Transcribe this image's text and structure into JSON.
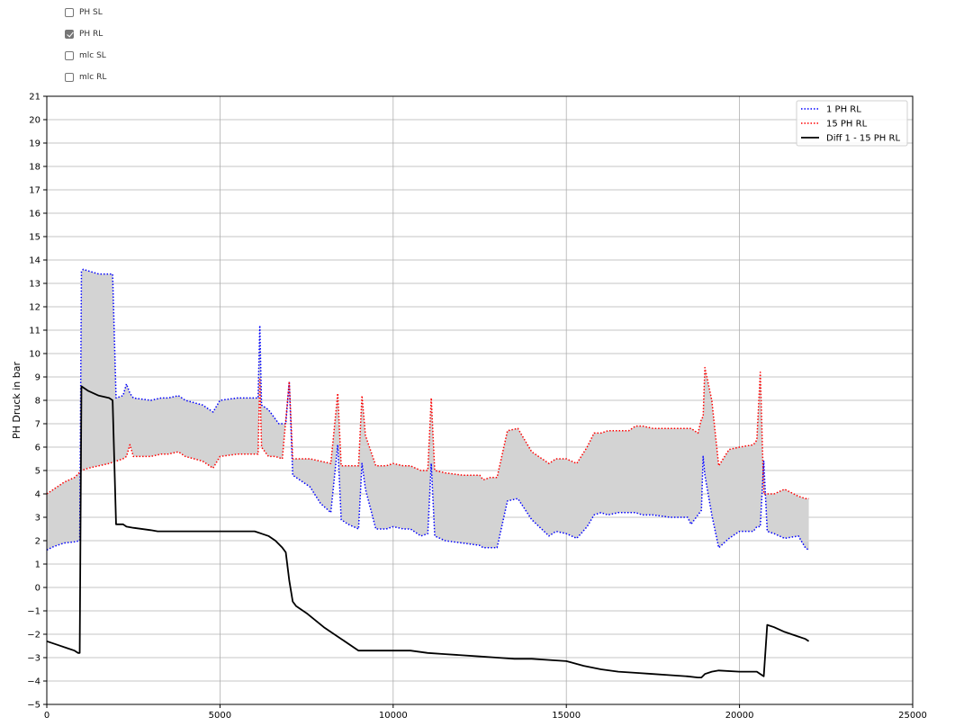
{
  "checkboxes": [
    {
      "label": "PH SL",
      "checked": false
    },
    {
      "label": "PH RL",
      "checked": true
    },
    {
      "label": "mlc SL",
      "checked": false
    },
    {
      "label": "mlc RL",
      "checked": false
    }
  ],
  "chart_data": {
    "type": "line",
    "title": "",
    "xlabel": "",
    "ylabel": "PH Druck in bar",
    "xlim": [
      0,
      25000
    ],
    "ylim": [
      -5,
      21
    ],
    "x_ticks": [
      "0",
      "5000",
      "10000",
      "15000",
      "20000",
      "25000"
    ],
    "y_ticks": [
      "−5",
      "−4",
      "−3",
      "−2",
      "−1",
      "0",
      "1",
      "2",
      "3",
      "4",
      "5",
      "6",
      "7",
      "8",
      "9",
      "10",
      "11",
      "12",
      "13",
      "14",
      "15",
      "16",
      "17",
      "18",
      "19",
      "20",
      "21"
    ],
    "grid": true,
    "legend_position": "top-right",
    "fill_between": {
      "series": [
        "1 PH RL",
        "15 PH RL"
      ],
      "color": "#d3d3d3"
    },
    "series": [
      {
        "name": "1 PH RL",
        "color": "#0000ff",
        "style": "dotted",
        "x": [
          0,
          200,
          500,
          800,
          950,
          1000,
          1050,
          1500,
          1800,
          1900,
          2000,
          2200,
          2300,
          2400,
          2500,
          3000,
          3300,
          3500,
          3800,
          4000,
          4500,
          4800,
          5000,
          5500,
          6000,
          6100,
          6150,
          6200,
          6400,
          6700,
          6900,
          7000,
          7100,
          7300,
          7600,
          7900,
          8200,
          8400,
          8500,
          8700,
          9000,
          9100,
          9200,
          9500,
          9800,
          10000,
          10300,
          10500,
          10800,
          11000,
          11100,
          11200,
          11500,
          12000,
          12500,
          12600,
          12800,
          13000,
          13300,
          13600,
          14000,
          14500,
          14700,
          15000,
          15300,
          15600,
          15800,
          16000,
          16200,
          16500,
          16800,
          17000,
          17200,
          17500,
          18000,
          18500,
          18600,
          18800,
          18900,
          18950,
          19000,
          19200,
          19400,
          19700,
          20000,
          20400,
          20500,
          20600,
          20700,
          20800,
          21000,
          21300,
          21700,
          21900,
          22000
        ],
        "y": [
          1.6,
          1.75,
          1.9,
          1.95,
          2.0,
          13.5,
          13.6,
          13.4,
          13.4,
          13.4,
          8.1,
          8.2,
          8.7,
          8.3,
          8.1,
          8.0,
          8.1,
          8.1,
          8.2,
          8.0,
          7.8,
          7.5,
          8.0,
          8.1,
          8.1,
          8.1,
          11.2,
          7.8,
          7.6,
          7.0,
          7.0,
          8.8,
          4.8,
          4.6,
          4.3,
          3.6,
          3.2,
          6.1,
          2.9,
          2.7,
          2.5,
          5.3,
          4.2,
          2.5,
          2.5,
          2.6,
          2.5,
          2.5,
          2.2,
          2.3,
          5.3,
          2.2,
          2.0,
          1.9,
          1.8,
          1.7,
          1.7,
          1.7,
          3.7,
          3.8,
          2.9,
          2.2,
          2.4,
          2.3,
          2.1,
          2.6,
          3.1,
          3.2,
          3.1,
          3.2,
          3.2,
          3.2,
          3.1,
          3.1,
          3.0,
          3.0,
          2.7,
          3.1,
          3.3,
          5.6,
          4.8,
          3.1,
          1.7,
          2.1,
          2.4,
          2.4,
          2.6,
          2.6,
          5.4,
          2.4,
          2.3,
          2.1,
          2.2,
          1.7,
          1.6
        ]
      },
      {
        "name": "15 PH RL",
        "color": "#ff0000",
        "style": "dotted",
        "x": [
          0,
          200,
          500,
          800,
          1000,
          1200,
          1500,
          1800,
          2000,
          2200,
          2300,
          2400,
          2500,
          2800,
          3000,
          3300,
          3500,
          3800,
          4000,
          4500,
          4800,
          5000,
          5500,
          6000,
          6100,
          6150,
          6200,
          6400,
          6600,
          6800,
          7000,
          7100,
          7300,
          7600,
          7900,
          8200,
          8400,
          8500,
          8700,
          9000,
          9100,
          9200,
          9500,
          9800,
          10000,
          10300,
          10500,
          10800,
          11000,
          11100,
          11200,
          11500,
          12000,
          12500,
          12600,
          12800,
          13000,
          13300,
          13600,
          14000,
          14500,
          14700,
          15000,
          15300,
          15600,
          15800,
          16000,
          16200,
          16500,
          16800,
          17000,
          17200,
          17500,
          18000,
          18500,
          18600,
          18800,
          18900,
          18950,
          19000,
          19200,
          19400,
          19700,
          20000,
          20400,
          20500,
          20600,
          20700,
          20800,
          21000,
          21300,
          21700,
          21900,
          22000
        ],
        "y": [
          4.0,
          4.2,
          4.5,
          4.7,
          5.0,
          5.1,
          5.2,
          5.3,
          5.4,
          5.5,
          5.6,
          6.1,
          5.6,
          5.6,
          5.6,
          5.7,
          5.7,
          5.8,
          5.6,
          5.4,
          5.1,
          5.6,
          5.7,
          5.7,
          5.7,
          8.9,
          6.0,
          5.6,
          5.6,
          5.5,
          8.8,
          5.5,
          5.5,
          5.5,
          5.4,
          5.3,
          8.3,
          5.2,
          5.2,
          5.2,
          8.2,
          6.5,
          5.2,
          5.2,
          5.3,
          5.2,
          5.2,
          5.0,
          5.0,
          8.1,
          5.0,
          4.9,
          4.8,
          4.8,
          4.6,
          4.7,
          4.7,
          6.7,
          6.8,
          5.8,
          5.3,
          5.5,
          5.5,
          5.3,
          6.0,
          6.6,
          6.6,
          6.7,
          6.7,
          6.7,
          6.9,
          6.9,
          6.8,
          6.8,
          6.8,
          6.8,
          6.6,
          7.2,
          7.3,
          9.4,
          8.0,
          5.2,
          5.9,
          6.0,
          6.1,
          6.3,
          9.2,
          4.0,
          4.0,
          4.0,
          4.2,
          3.9,
          3.8,
          3.8
        ]
      },
      {
        "name": "Diff 1 - 15 PH RL",
        "color": "#000000",
        "style": "solid",
        "x": [
          0,
          300,
          600,
          800,
          900,
          950,
          1000,
          1100,
          1200,
          1500,
          1800,
          1900,
          2000,
          2200,
          2300,
          2500,
          3000,
          3200,
          3500,
          4000,
          5000,
          5500,
          6000,
          6100,
          6200,
          6400,
          6600,
          6800,
          6900,
          7000,
          7100,
          7200,
          7500,
          8000,
          8500,
          9000,
          9500,
          10000,
          10500,
          11000,
          11500,
          12000,
          12500,
          13000,
          13500,
          14000,
          14500,
          15000,
          15500,
          16000,
          16500,
          17000,
          17500,
          18000,
          18500,
          18800,
          18900,
          19000,
          19200,
          19400,
          20000,
          20300,
          20500,
          20600,
          20700,
          20800,
          21000,
          21300,
          21500,
          21700,
          21900,
          22000
        ],
        "y": [
          -2.3,
          -2.45,
          -2.6,
          -2.7,
          -2.8,
          -2.8,
          8.6,
          8.5,
          8.4,
          8.2,
          8.1,
          8.0,
          2.7,
          2.7,
          2.6,
          2.55,
          2.45,
          2.4,
          2.4,
          2.4,
          2.4,
          2.4,
          2.4,
          2.35,
          2.3,
          2.2,
          2.0,
          1.7,
          1.5,
          0.3,
          -0.6,
          -0.8,
          -1.1,
          -1.7,
          -2.2,
          -2.7,
          -2.7,
          -2.7,
          -2.7,
          -2.8,
          -2.85,
          -2.9,
          -2.95,
          -3.0,
          -3.05,
          -3.05,
          -3.1,
          -3.15,
          -3.35,
          -3.5,
          -3.6,
          -3.65,
          -3.7,
          -3.75,
          -3.8,
          -3.85,
          -3.85,
          -3.7,
          -3.6,
          -3.55,
          -3.6,
          -3.6,
          -3.6,
          -3.7,
          -3.8,
          -1.6,
          -1.7,
          -1.9,
          -2.0,
          -2.1,
          -2.2,
          -2.3
        ]
      }
    ]
  }
}
